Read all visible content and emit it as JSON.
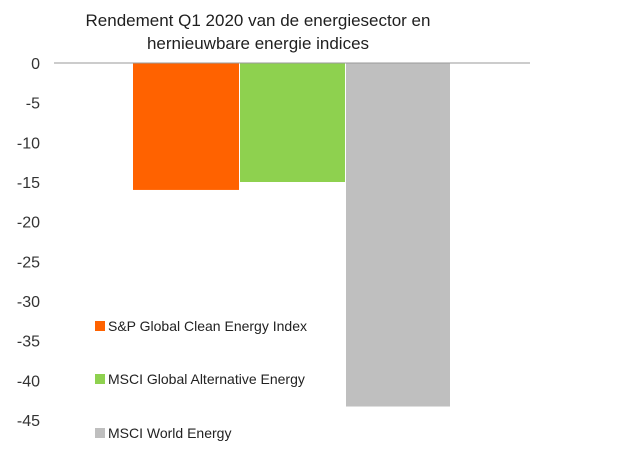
{
  "chart_data": {
    "type": "bar",
    "title_lines": [
      "Rendement Q1 2020 van de energiesector en",
      "hernieuwbare energie indices"
    ],
    "series": [
      {
        "name": "S&P Global Clean Energy Index",
        "value": -16.0,
        "color": "#FF6200"
      },
      {
        "name": "MSCI Global Alternative Energy",
        "value": -15.0,
        "color": "#8ED14F"
      },
      {
        "name": "MSCI World Energy",
        "value": -43.3,
        "color": "#BFBFBF"
      }
    ],
    "yticks": [
      "0",
      "-5",
      "-10",
      "-15",
      "-20",
      "-25",
      "-30",
      "-35",
      "-40",
      "-45"
    ],
    "ylim": [
      -45,
      0
    ],
    "grid": false,
    "legend_position": "bottom-left, inside plot"
  }
}
